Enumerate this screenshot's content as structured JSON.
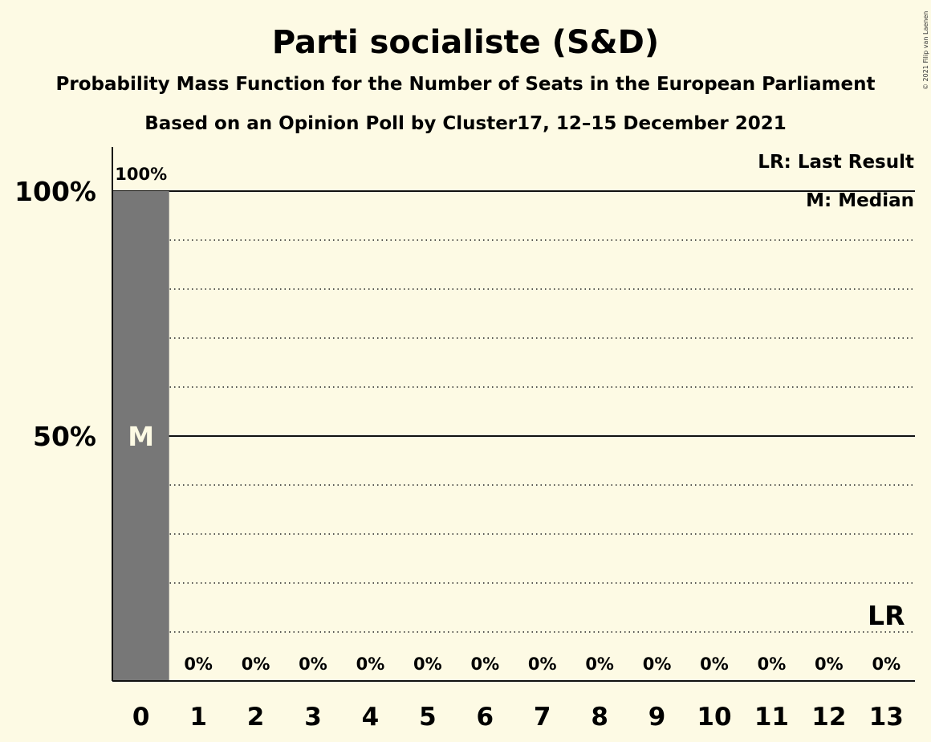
{
  "header": {
    "title": "Parti socialiste (S&D)",
    "subtitle1": "Probability Mass Function for the Number of Seats in the European Parliament",
    "subtitle2": "Based on an Opinion Poll by Cluster17, 12–15 December 2021"
  },
  "legend": {
    "last_result": "LR: Last Result",
    "median": "M: Median"
  },
  "copyright": "© 2021 Filip van Laenen",
  "chart_data": {
    "type": "bar",
    "categories": [
      "0",
      "1",
      "2",
      "3",
      "4",
      "5",
      "6",
      "7",
      "8",
      "9",
      "10",
      "11",
      "12",
      "13"
    ],
    "values": [
      100,
      0,
      0,
      0,
      0,
      0,
      0,
      0,
      0,
      0,
      0,
      0,
      0,
      0
    ],
    "value_labels": [
      "100%",
      "0%",
      "0%",
      "0%",
      "0%",
      "0%",
      "0%",
      "0%",
      "0%",
      "0%",
      "0%",
      "0%",
      "0%",
      "0%"
    ],
    "ylim": [
      0,
      100
    ],
    "yticks": [
      {
        "value": 50,
        "label": "50%"
      },
      {
        "value": 100,
        "label": "100%"
      }
    ],
    "minor_grid_step": 10,
    "median_seat": "0",
    "median_marker": "M",
    "last_result_seat": "13",
    "last_result_marker": "LR",
    "bar_color": "#777777",
    "background": "#fdfae4",
    "legend_position": "top-right"
  }
}
